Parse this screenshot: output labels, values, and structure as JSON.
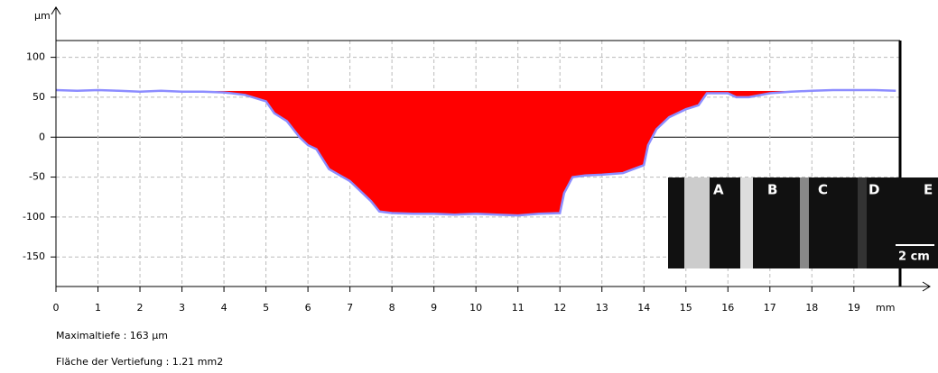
{
  "chart_data": {
    "type": "area",
    "ylabel": "µm",
    "xlabel": "mm",
    "x": [
      0,
      0.5,
      1,
      1.5,
      2,
      2.5,
      3,
      3.5,
      4,
      4.5,
      5,
      5.2,
      5.5,
      5.8,
      6,
      6.2,
      6.5,
      7,
      7.5,
      7.7,
      8,
      8.5,
      9,
      9.5,
      10,
      10.5,
      11,
      11.5,
      12,
      12.1,
      12.3,
      12.6,
      13,
      13.5,
      14,
      14.1,
      14.3,
      14.6,
      15,
      15.3,
      15.5,
      16,
      16.2,
      16.5,
      17,
      17.5,
      18,
      18.5,
      19,
      19.5,
      20
    ],
    "series": [
      {
        "color": "#8c8cff",
        "fill": "#ff0000",
        "values": [
          59,
          58,
          59,
          58,
          57,
          58,
          57,
          57,
          56,
          53,
          45,
          30,
          20,
          0,
          -10,
          -15,
          -40,
          -55,
          -80,
          -93,
          -95,
          -96,
          -96,
          -97,
          -96,
          -97,
          -98,
          -96,
          -95,
          -70,
          -50,
          -48,
          -47,
          -45,
          -35,
          -10,
          10,
          25,
          35,
          40,
          55,
          55,
          50,
          50,
          55,
          57,
          58,
          59,
          59,
          59,
          58
        ]
      }
    ],
    "fill_to": 58,
    "xlim": [
      0,
      20.1
    ],
    "ylim": [
      -187,
      121
    ],
    "xticks": [
      0,
      1,
      2,
      3,
      4,
      5,
      6,
      7,
      8,
      9,
      10,
      11,
      12,
      13,
      14,
      15,
      16,
      17,
      18,
      19
    ],
    "yticks": [
      -150,
      -100,
      -50,
      0,
      50,
      100
    ],
    "grid": true
  },
  "notes": [
    "Maximaltiefe : 163 µm",
    "Fläche der Vertiefung : 1.21 mm2"
  ],
  "inset": {
    "labels": [
      "A",
      "B",
      "C",
      "D",
      "E"
    ],
    "scale": "2 cm"
  }
}
